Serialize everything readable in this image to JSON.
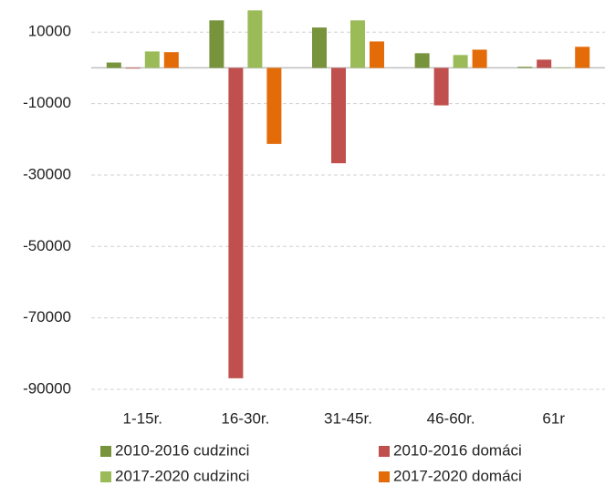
{
  "chart_data": {
    "type": "bar",
    "categories": [
      "1-15r.",
      "16-30r.",
      "31-45r.",
      "46-60r.",
      "61r"
    ],
    "series": [
      {
        "name": "2010-2016 cudzinci",
        "color": "#77933c",
        "values": [
          1500,
          13300,
          11300,
          4100,
          300
        ]
      },
      {
        "name": "2010-2016 domáci",
        "color": "#c0504d",
        "values": [
          -200,
          -86900,
          -26700,
          -10500,
          2300
        ]
      },
      {
        "name": "2017-2020 cudzinci",
        "color": "#9bbb59",
        "values": [
          4600,
          16100,
          13300,
          3600,
          0
        ]
      },
      {
        "name": "2017-2020 domáci",
        "color": "#e36c09",
        "values": [
          4400,
          -21300,
          7400,
          5100,
          5900
        ]
      }
    ],
    "ylim": [
      -90000,
      19000
    ],
    "yticks": [
      10000,
      -10000,
      -30000,
      -50000,
      -70000,
      -90000
    ],
    "grid": true,
    "legend": "bottom"
  }
}
